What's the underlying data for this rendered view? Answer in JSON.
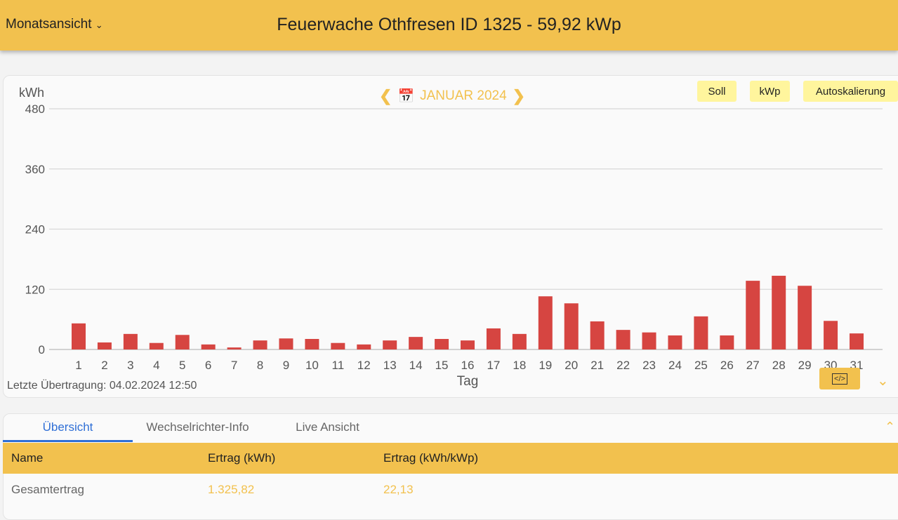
{
  "header": {
    "view_selector": "Monatsansicht",
    "title": "Feuerwache Othfresen ID 1325 - 59,92 kWp"
  },
  "chart_controls": {
    "month": "JANUAR 2024",
    "buttons": [
      "Soll",
      "kWp",
      "Autoskalierung"
    ]
  },
  "last_transfer": "Letzte Übertragung: 04.02.2024 12:50",
  "colors": {
    "accent": "#f2c14e",
    "bar": "#d64541",
    "tab_active": "#2f6fd6"
  },
  "chart_data": {
    "type": "bar",
    "ylabel": "kWh",
    "xlabel": "Tag",
    "ylim": [
      0,
      480
    ],
    "yticks": [
      0,
      120,
      240,
      360,
      480
    ],
    "grid": true,
    "categories": [
      "1",
      "2",
      "3",
      "4",
      "5",
      "6",
      "7",
      "8",
      "9",
      "10",
      "11",
      "12",
      "13",
      "14",
      "15",
      "16",
      "17",
      "18",
      "19",
      "20",
      "21",
      "22",
      "23",
      "24",
      "25",
      "26",
      "27",
      "28",
      "29",
      "30",
      "31"
    ],
    "values": [
      52,
      14,
      31,
      13,
      29,
      10,
      4,
      18,
      22,
      21,
      13,
      10,
      18,
      25,
      21,
      18,
      42,
      31,
      106,
      92,
      56,
      39,
      34,
      28,
      66,
      28,
      137,
      147,
      127,
      57,
      32
    ]
  },
  "tabs": [
    {
      "label": "Übersicht",
      "active": true
    },
    {
      "label": "Wechselrichter-Info"
    },
    {
      "label": "Live Ansicht"
    }
  ],
  "table": {
    "headers": [
      "Name",
      "Ertrag (kWh)",
      "Ertrag (kWh/kWp)"
    ],
    "rows": [
      [
        "Gesamtertrag",
        "1.325,82",
        "22,13"
      ]
    ]
  }
}
